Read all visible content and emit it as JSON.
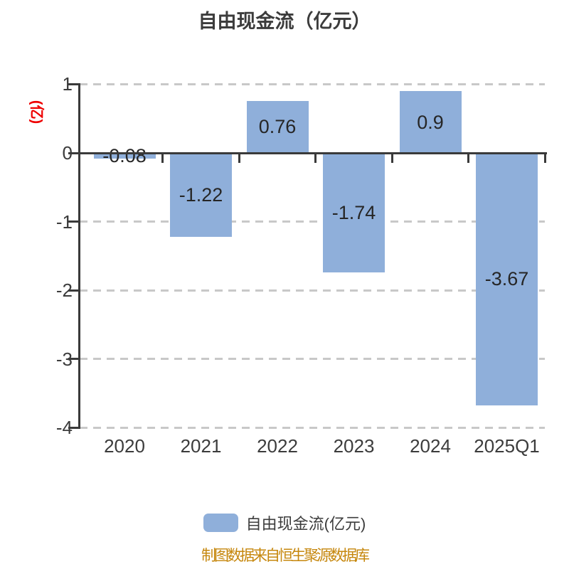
{
  "title": "自由现金流（亿元）",
  "y_axis_unit_label": "(亿)",
  "legend": {
    "label": "自由现金流(亿元)"
  },
  "footer": "制图数据来自恒生聚源数据库",
  "colors": {
    "bar": "#8fafda",
    "axis": "#3a3a3a",
    "grid": "#c8c8c8",
    "tick_label": "#3c3c3c",
    "title": "#3c3c3c",
    "value_label": "#262626",
    "unit_label": "#ee0000",
    "footer": "#c6870d"
  },
  "chart_data": {
    "type": "bar",
    "title": "自由现金流（亿元）",
    "ylabel": "(亿)",
    "series_name": "自由现金流(亿元)",
    "categories": [
      "2020",
      "2021",
      "2022",
      "2023",
      "2024",
      "2025Q1"
    ],
    "values": [
      -0.08,
      -1.22,
      0.76,
      -1.74,
      0.9,
      -3.67
    ],
    "value_labels": [
      "-0.08",
      "-1.22",
      "0.76",
      "-1.74",
      "0.9",
      "-3.67"
    ],
    "y_ticks": [
      1,
      0,
      -1,
      -2,
      -3,
      -4
    ],
    "ylim": [
      -4,
      1
    ],
    "grid": "horizontal-dashed",
    "legend_position": "bottom",
    "bar_label_position": "center-of-bar"
  }
}
